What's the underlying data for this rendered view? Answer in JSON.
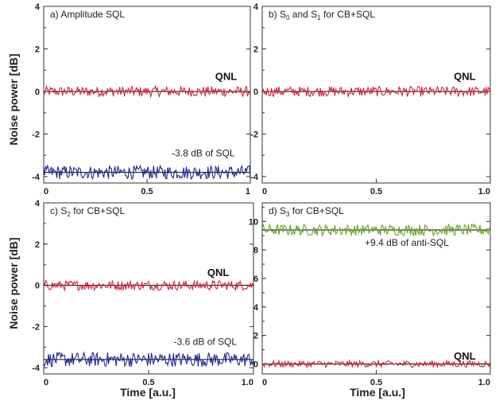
{
  "chart_data": [
    {
      "type": "line",
      "title": "a) Amplitude SQL",
      "ylabel": "Noise power [dB]",
      "xlabel": "",
      "xlim": [
        0,
        1
      ],
      "ylim": [
        -4.3,
        4
      ],
      "xticks": [
        "0",
        "0.5",
        "1"
      ],
      "yticks": [
        "4",
        "2",
        "0",
        "-2",
        "-4"
      ],
      "series": [
        {
          "values": [
            0.0,
            0.0,
            0.0
          ],
          "x": [
            0,
            0.5,
            1.0
          ],
          "color": "#c8283c",
          "noise": 0.15
        },
        {
          "values": [
            -3.8,
            -3.8,
            -3.8
          ],
          "x": [
            0,
            0.5,
            1.0
          ],
          "color": "#1f2a8a",
          "noise": 0.2
        }
      ],
      "annotations": [
        {
          "text": "QNL",
          "x": 0.83,
          "y": 0.55
        },
        {
          "text": "-3.8 dB of SQL",
          "x": 0.62,
          "y": -3.05
        }
      ]
    },
    {
      "type": "line",
      "title": "b) S0 and S1 for CB+SQL",
      "title_parts": {
        "pre": "b) S",
        "sub0": "0",
        "mid": " and S",
        "sub1": "1",
        "post": " for CB+SQL"
      },
      "ylabel": "",
      "xlabel": "",
      "xlim": [
        0,
        1
      ],
      "ylim": [
        -4.3,
        4
      ],
      "xticks": [
        "0",
        "0.5",
        "1.0"
      ],
      "yticks": [
        "4",
        "2",
        "0",
        "-2",
        "-4"
      ],
      "series": [
        {
          "values": [
            0.0,
            0.0,
            0.0
          ],
          "x": [
            0,
            0.5,
            1.0
          ],
          "color": "#c8283c",
          "noise": 0.15
        }
      ],
      "annotations": [
        {
          "text": "QNL",
          "x": 0.84,
          "y": 0.55
        }
      ]
    },
    {
      "type": "line",
      "title": "c) S2 for CB+SQL",
      "title_parts": {
        "pre": "c) S",
        "sub0": "2",
        "post": " for CB+SQL"
      },
      "ylabel": "Noise power [dB]",
      "xlabel": "Time [a.u.]",
      "xlim": [
        0,
        1
      ],
      "ylim": [
        -4.3,
        4
      ],
      "xticks": [
        "0",
        "0.5",
        "1.0"
      ],
      "yticks": [
        "4",
        "2",
        "0",
        "-2",
        "-4"
      ],
      "series": [
        {
          "values": [
            0.0,
            0.0,
            0.0
          ],
          "x": [
            0,
            0.5,
            1.0
          ],
          "color": "#c8283c",
          "noise": 0.15
        },
        {
          "values": [
            -3.6,
            -3.6,
            -3.6
          ],
          "x": [
            0,
            0.5,
            1.0
          ],
          "color": "#1f2a8a",
          "noise": 0.22
        }
      ],
      "annotations": [
        {
          "text": "QNL",
          "x": 0.78,
          "y": 0.45
        },
        {
          "text": "-3.6 dB of SQL",
          "x": 0.62,
          "y": -2.9
        }
      ]
    },
    {
      "type": "line",
      "title": "d) S3 for CB+SQL",
      "title_parts": {
        "pre": "d) S",
        "sub0": "3",
        "post": " for CB+SQL"
      },
      "ylabel": "",
      "xlabel": "Time [a.u.]",
      "xlim": [
        0,
        1
      ],
      "ylim": [
        -0.7,
        11.3
      ],
      "xticks": [
        "0",
        "0.5",
        "1.0"
      ],
      "yticks": [
        "10",
        "8",
        "6",
        "4",
        "2",
        "0"
      ],
      "series": [
        {
          "values": [
            9.4,
            9.4,
            9.4
          ],
          "x": [
            0,
            0.5,
            1.0
          ],
          "color": "#6aa030",
          "noise": 0.25
        },
        {
          "values": [
            0.0,
            0.0,
            0.0
          ],
          "x": [
            0,
            0.5,
            1.0
          ],
          "color": "#c8283c",
          "noise": 0.15
        }
      ],
      "annotations": [
        {
          "text": "+9.4 dB of anti-SQL",
          "x": 0.45,
          "y": 8.3
        },
        {
          "text": "QNL",
          "x": 0.84,
          "y": 0.3
        }
      ]
    }
  ]
}
